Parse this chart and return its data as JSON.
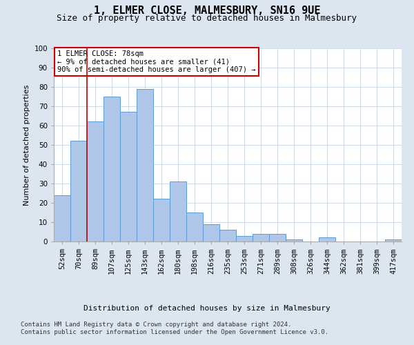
{
  "title": "1, ELMER CLOSE, MALMESBURY, SN16 9UE",
  "subtitle": "Size of property relative to detached houses in Malmesbury",
  "xlabel": "Distribution of detached houses by size in Malmesbury",
  "ylabel": "Number of detached properties",
  "footer_line1": "Contains HM Land Registry data © Crown copyright and database right 2024.",
  "footer_line2": "Contains public sector information licensed under the Open Government Licence v3.0.",
  "categories": [
    "52sqm",
    "70sqm",
    "89sqm",
    "107sqm",
    "125sqm",
    "143sqm",
    "162sqm",
    "180sqm",
    "198sqm",
    "216sqm",
    "235sqm",
    "253sqm",
    "271sqm",
    "289sqm",
    "308sqm",
    "326sqm",
    "344sqm",
    "362sqm",
    "381sqm",
    "399sqm",
    "417sqm"
  ],
  "values": [
    24,
    52,
    62,
    75,
    67,
    79,
    22,
    31,
    15,
    9,
    6,
    3,
    4,
    4,
    1,
    0,
    2,
    0,
    0,
    0,
    1
  ],
  "bar_color": "#aec6e8",
  "bar_edge_color": "#5b9bd5",
  "background_color": "#dce6f1",
  "plot_background": "#ffffff",
  "grid_color": "#c8d8e8",
  "vline_x": 1.5,
  "vline_color": "#cc0000",
  "annotation_text": "1 ELMER CLOSE: 78sqm\n← 9% of detached houses are smaller (41)\n90% of semi-detached houses are larger (407) →",
  "annotation_box_color": "#ffffff",
  "annotation_box_edge": "#cc0000",
  "ylim": [
    0,
    100
  ],
  "yticks": [
    0,
    10,
    20,
    30,
    40,
    50,
    60,
    70,
    80,
    90,
    100
  ],
  "title_fontsize": 11,
  "subtitle_fontsize": 9,
  "ylabel_fontsize": 8,
  "xlabel_fontsize": 8,
  "tick_fontsize": 7.5,
  "footer_fontsize": 6.5,
  "ann_fontsize": 7.5
}
